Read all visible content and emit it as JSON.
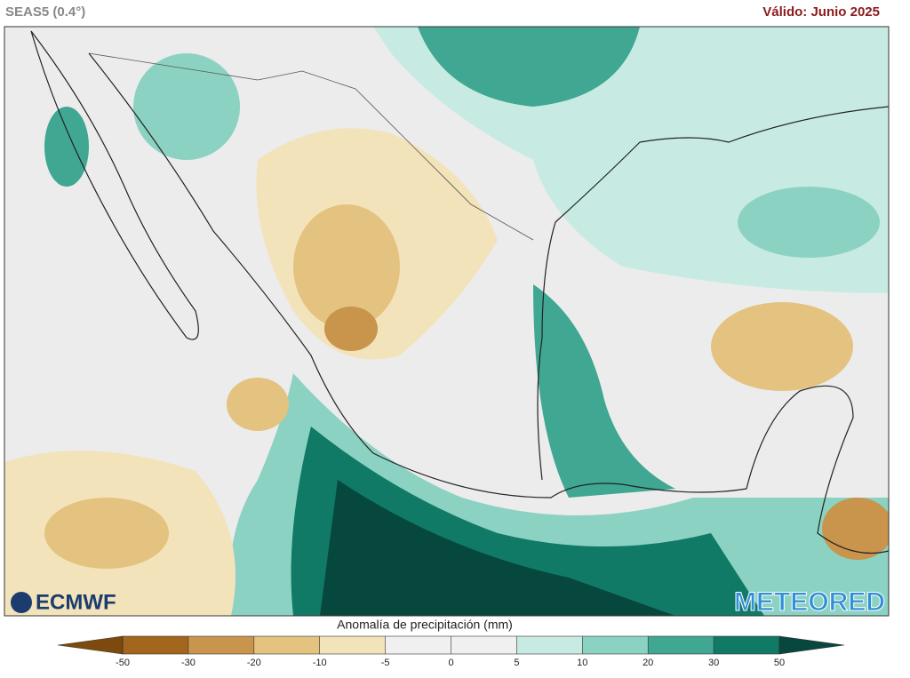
{
  "header": {
    "left": "SEAS5 (0.4°)",
    "right": "Válido: Junio 2025"
  },
  "logos": {
    "left": "ECMWF",
    "right": "METEORED"
  },
  "colorbar": {
    "title": "Anomalía de precipitación (mm)",
    "ticks": [
      -50,
      -30,
      -20,
      -10,
      -5,
      0,
      5,
      10,
      20,
      30,
      50
    ],
    "colors": [
      "#7b4a0c",
      "#a3661c",
      "#c9944c",
      "#e4c27f",
      "#f3e3ba",
      "#f0f0f0",
      "#f0f0f0",
      "#c7ebe2",
      "#8cd2c2",
      "#3fa792",
      "#107a67",
      "#06483d"
    ]
  }
}
